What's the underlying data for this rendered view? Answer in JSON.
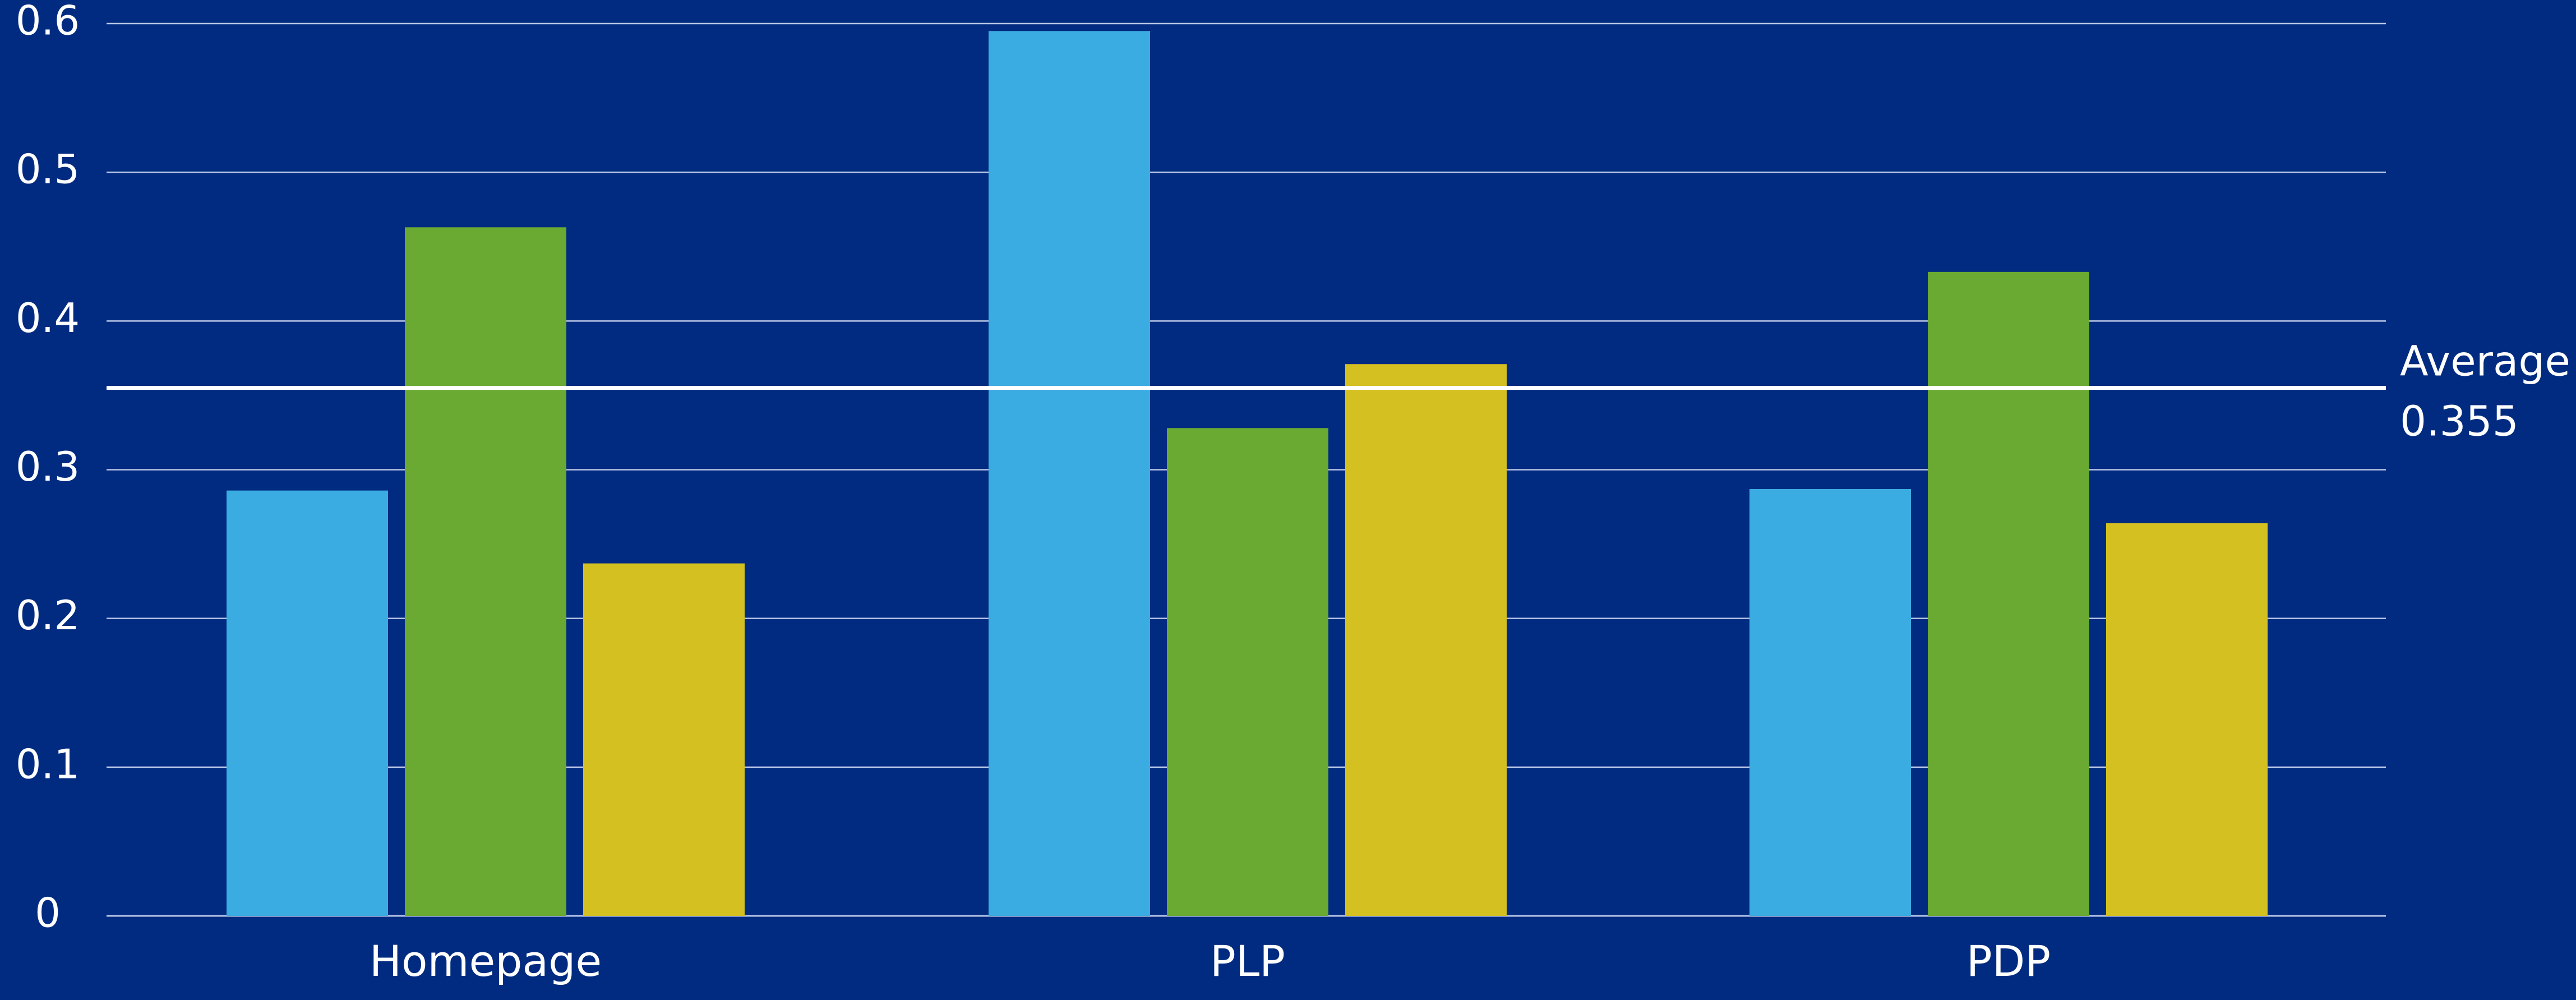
{
  "chart_data": {
    "type": "bar",
    "categories": [
      "Homepage",
      "PLP",
      "PDP"
    ],
    "series": [
      {
        "values": [
          0.286,
          0.595,
          0.287
        ],
        "color": "#3aace1"
      },
      {
        "values": [
          0.463,
          0.328,
          0.433
        ],
        "color": "#6aaa33"
      },
      {
        "values": [
          0.237,
          0.371,
          0.264
        ],
        "color": "#d4c021"
      }
    ],
    "ylim": [
      0,
      0.6
    ],
    "yticks": [
      "0",
      "0.1",
      "0.2",
      "0.3",
      "0.4",
      "0.5",
      "0.6"
    ],
    "reference_line": {
      "label": "Average",
      "value": 0.355,
      "value_text": "0.355"
    },
    "grid": true,
    "background": "#002b80",
    "gridline_color": "#b8c6e6",
    "text_color": "#ffffff"
  }
}
